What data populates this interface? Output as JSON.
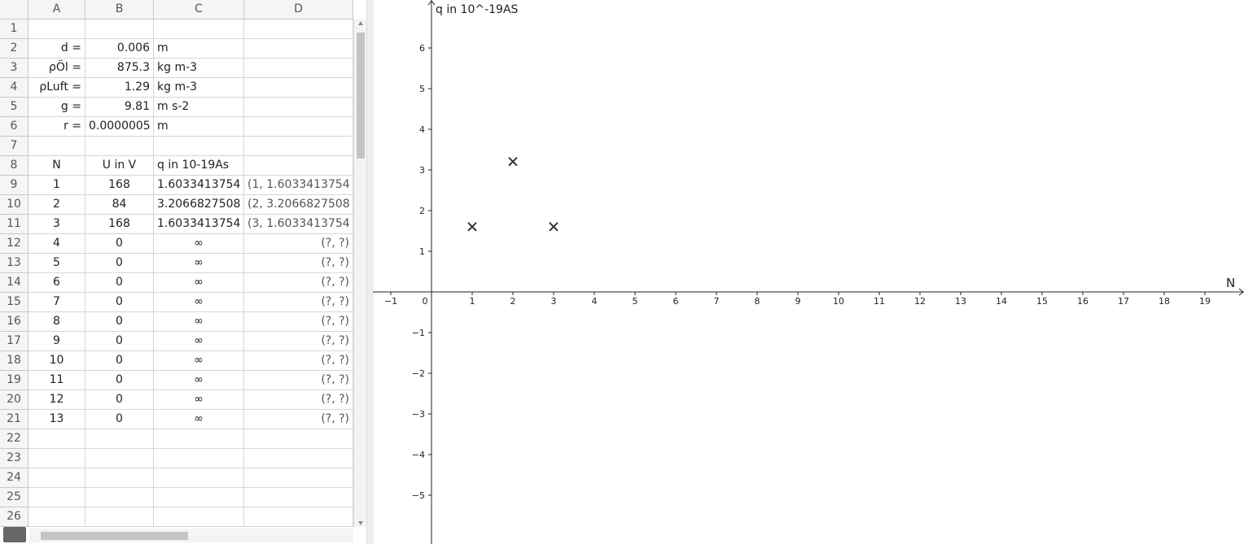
{
  "spreadsheet": {
    "columns": [
      "A",
      "B",
      "C",
      "D"
    ],
    "rows": [
      {
        "number": 1,
        "cells": [
          null,
          null,
          null,
          null
        ]
      },
      {
        "number": 2,
        "cells": [
          "d =",
          "0.006",
          "m",
          null
        ]
      },
      {
        "number": 3,
        "cells": [
          "ρÖl =",
          "875.3",
          "kg m-3",
          null
        ]
      },
      {
        "number": 4,
        "cells": [
          "ρLuft =",
          "1.29",
          "kg m-3",
          null
        ]
      },
      {
        "number": 5,
        "cells": [
          "g =",
          "9.81",
          "m s-2",
          null
        ]
      },
      {
        "number": 6,
        "cells": [
          "r =",
          "0.0000005",
          "m",
          null
        ]
      },
      {
        "number": 7,
        "cells": [
          null,
          null,
          null,
          null
        ]
      },
      {
        "number": 8,
        "cells": [
          "N",
          "U in V",
          "q in 10-19As",
          null
        ]
      },
      {
        "number": 9,
        "cells": [
          "1",
          "168",
          "1.6033413754",
          "(1, 1.6033413754"
        ]
      },
      {
        "number": 10,
        "cells": [
          "2",
          "84",
          "3.2066827508",
          "(2, 3.2066827508"
        ]
      },
      {
        "number": 11,
        "cells": [
          "3",
          "168",
          "1.6033413754",
          "(3, 1.6033413754"
        ]
      },
      {
        "number": 12,
        "cells": [
          "4",
          "0",
          "∞",
          "(?, ?)"
        ]
      },
      {
        "number": 13,
        "cells": [
          "5",
          "0",
          "∞",
          "(?, ?)"
        ]
      },
      {
        "number": 14,
        "cells": [
          "6",
          "0",
          "∞",
          "(?, ?)"
        ]
      },
      {
        "number": 15,
        "cells": [
          "7",
          "0",
          "∞",
          "(?, ?)"
        ]
      },
      {
        "number": 16,
        "cells": [
          "8",
          "0",
          "∞",
          "(?, ?)"
        ]
      },
      {
        "number": 17,
        "cells": [
          "9",
          "0",
          "∞",
          "(?, ?)"
        ]
      },
      {
        "number": 18,
        "cells": [
          "10",
          "0",
          "∞",
          "(?, ?)"
        ]
      },
      {
        "number": 19,
        "cells": [
          "11",
          "0",
          "∞",
          "(?, ?)"
        ]
      },
      {
        "number": 20,
        "cells": [
          "12",
          "0",
          "∞",
          "(?, ?)"
        ]
      },
      {
        "number": 21,
        "cells": [
          "13",
          "0",
          "∞",
          "(?, ?)"
        ]
      },
      {
        "number": 22,
        "cells": [
          null,
          null,
          null,
          null
        ]
      },
      {
        "number": 23,
        "cells": [
          null,
          null,
          null,
          null
        ]
      },
      {
        "number": 24,
        "cells": [
          null,
          null,
          null,
          null
        ]
      },
      {
        "number": 25,
        "cells": [
          null,
          null,
          null,
          null
        ]
      },
      {
        "number": 26,
        "cells": [
          null,
          null,
          null,
          null
        ]
      }
    ]
  },
  "graph": {
    "x_label": "N",
    "y_label": "q in 10^-19AS",
    "xlim": [
      -1.44,
      19.96
    ],
    "ylim": [
      -6.2,
      7.18
    ],
    "xticks": [
      {
        "value": -1,
        "label": "−1"
      },
      0,
      1,
      2,
      3,
      4,
      5,
      6,
      7,
      8,
      9,
      10,
      11,
      12,
      13,
      14,
      15,
      16,
      17,
      18,
      19
    ],
    "yticks": [
      {
        "value": -5,
        "label": "−5"
      },
      {
        "value": -4,
        "label": "−4"
      },
      {
        "value": -3,
        "label": "−3"
      },
      {
        "value": -2,
        "label": "−2"
      },
      {
        "value": -1,
        "label": "−1"
      },
      1,
      2,
      3,
      4,
      5,
      6
    ],
    "points": {
      "x": [
        1,
        2,
        3
      ],
      "y": [
        1.6033413754,
        3.2066827508,
        1.6033413754
      ],
      "color": "#333333"
    }
  }
}
